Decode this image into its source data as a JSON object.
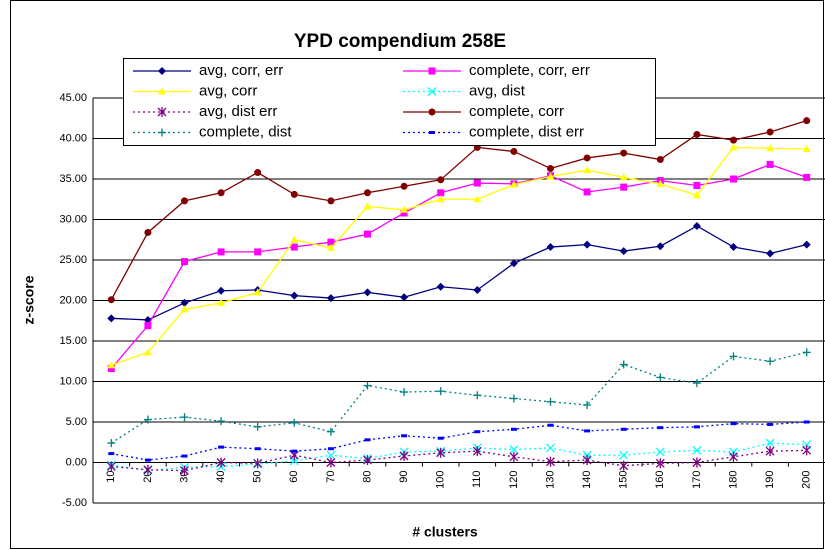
{
  "chart_data": {
    "type": "line",
    "title": "YPD compendium 258E",
    "x_label": "# clusters",
    "y_label": "z-score",
    "categories": [
      "10",
      "20",
      "30",
      "40",
      "50",
      "60",
      "70",
      "80",
      "90",
      "100",
      "110",
      "120",
      "130",
      "140",
      "150",
      "160",
      "170",
      "180",
      "190",
      "200"
    ],
    "ylim": [
      -5,
      45
    ],
    "yticks": [
      {
        "value": -5,
        "label": "-5.00"
      },
      {
        "value": 0,
        "label": "0.00"
      },
      {
        "value": 5,
        "label": "5.00"
      },
      {
        "value": 10,
        "label": "10.00"
      },
      {
        "value": 15,
        "label": "15.00"
      },
      {
        "value": 20,
        "label": "20.00"
      },
      {
        "value": 25,
        "label": "25.00"
      },
      {
        "value": 30,
        "label": "30.00"
      },
      {
        "value": 35,
        "label": "35.00"
      },
      {
        "value": 40,
        "label": "40.00"
      },
      {
        "value": 45,
        "label": "45.00"
      }
    ],
    "grid": true,
    "series": [
      {
        "name": "avg, corr, err",
        "color": "#000080",
        "marker": "diamond",
        "dash": "solid",
        "values": [
          17.8,
          17.6,
          19.7,
          21.2,
          21.3,
          20.6,
          20.3,
          21.0,
          20.4,
          21.7,
          21.3,
          24.6,
          26.6,
          26.9,
          26.1,
          26.7,
          29.2,
          26.6,
          25.8,
          26.9
        ]
      },
      {
        "name": "complete, corr, err",
        "color": "#ff00ff",
        "marker": "square",
        "dash": "solid",
        "values": [
          11.6,
          16.9,
          24.8,
          26.0,
          26.0,
          26.6,
          27.2,
          28.2,
          30.8,
          33.3,
          34.5,
          34.4,
          35.4,
          33.4,
          34.0,
          34.8,
          34.2,
          35.0,
          36.8,
          35.2
        ]
      },
      {
        "name": "avg, corr",
        "color": "#ffff00",
        "marker": "triangle",
        "dash": "solid",
        "values": [
          12.0,
          13.6,
          18.9,
          19.7,
          21.0,
          27.5,
          26.5,
          31.6,
          31.2,
          32.5,
          32.5,
          34.3,
          35.3,
          36.1,
          35.2,
          34.4,
          33.0,
          38.9,
          38.8,
          38.7
        ]
      },
      {
        "name": "avg, dist",
        "color": "#00ffff",
        "marker": "x",
        "dash": "dotted",
        "values": [
          -0.3,
          -1.0,
          -0.6,
          -0.5,
          -0.2,
          0.2,
          0.9,
          0.5,
          1.3,
          1.4,
          1.8,
          1.6,
          1.8,
          0.9,
          0.9,
          1.3,
          1.5,
          1.3,
          2.4,
          2.2
        ]
      },
      {
        "name": "avg, dist err",
        "color": "#800080",
        "marker": "asterisk",
        "dash": "dotted",
        "values": [
          -0.5,
          -0.9,
          -1.0,
          0.0,
          -0.1,
          0.9,
          0.0,
          0.3,
          0.8,
          1.2,
          1.4,
          0.7,
          0.1,
          0.3,
          -0.4,
          -0.1,
          0.0,
          0.7,
          1.4,
          1.5
        ]
      },
      {
        "name": "complete, corr",
        "color": "#800000",
        "marker": "circle",
        "dash": "solid",
        "values": [
          20.1,
          28.4,
          32.3,
          33.3,
          35.8,
          33.1,
          32.3,
          33.3,
          34.1,
          34.9,
          38.9,
          38.4,
          36.3,
          37.6,
          38.2,
          37.4,
          40.5,
          39.8,
          40.8,
          42.2
        ]
      },
      {
        "name": "complete, dist",
        "color": "#008080",
        "marker": "plus",
        "dash": "dotted",
        "values": [
          2.4,
          5.3,
          5.6,
          5.1,
          4.4,
          4.9,
          3.8,
          9.5,
          8.7,
          8.8,
          8.3,
          7.9,
          7.5,
          7.1,
          12.1,
          10.5,
          9.8,
          13.1,
          12.5,
          13.6
        ]
      },
      {
        "name": "complete, dist err",
        "color": "#0000ff",
        "marker": "dash",
        "dash": "dotted",
        "values": [
          1.1,
          0.3,
          0.8,
          1.9,
          1.7,
          1.4,
          1.7,
          2.8,
          3.3,
          3.0,
          3.8,
          4.1,
          4.6,
          3.9,
          4.1,
          4.3,
          4.4,
          4.8,
          4.7,
          5.0
        ]
      }
    ]
  }
}
